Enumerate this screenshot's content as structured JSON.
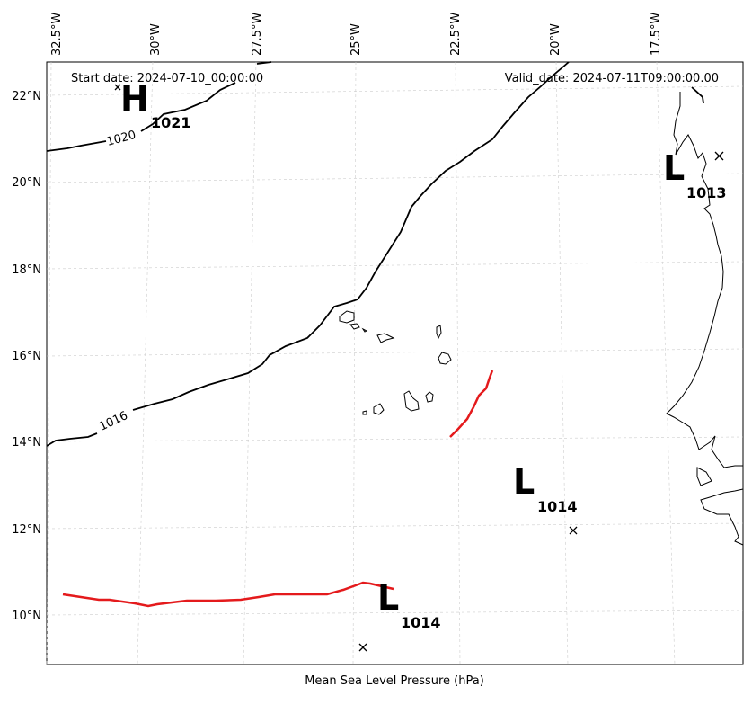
{
  "header": {
    "start_date": "Start date: 2024-07-10_00:00:00",
    "valid_date": "Valid_date: 2024-07-11T09:00:00.00"
  },
  "footer": {
    "xlabel": "Mean Sea Level Pressure (hPa)"
  },
  "axes": {
    "lon_ticks": [
      "32.5°W",
      "30°W",
      "27.5°W",
      "25°W",
      "22.5°W",
      "20°W",
      "17.5°W"
    ],
    "lat_ticks": [
      "22°N",
      "20°N",
      "18°N",
      "16°N",
      "14°N",
      "12°N",
      "10°N"
    ]
  },
  "pressure_centers": [
    {
      "type": "H",
      "value": "1021"
    },
    {
      "type": "L",
      "value": "1013"
    },
    {
      "type": "L",
      "value": "1014"
    },
    {
      "type": "L",
      "value": "1014"
    }
  ],
  "isobars": [
    {
      "label": "1020"
    },
    {
      "label": "1016"
    }
  ],
  "colors": {
    "isobar": "#000000",
    "trough": "#e41a1c",
    "grid": "#cccccc",
    "land": "#000000"
  }
}
